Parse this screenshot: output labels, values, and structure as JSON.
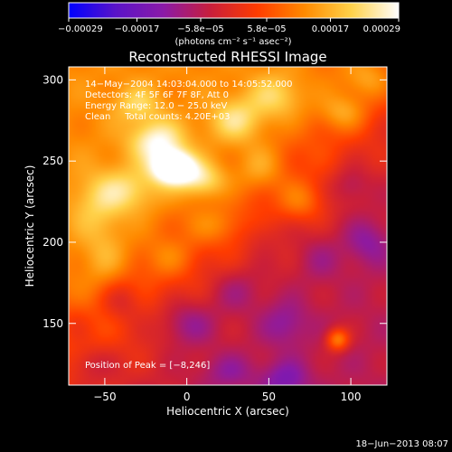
{
  "chart_data": {
    "type": "heatmap",
    "title": "Reconstructed RHESSI Image",
    "xlabel": "Heliocentric X (arcsec)",
    "ylabel": "Heliocentric Y (arcsec)",
    "xlim": [
      -72,
      122
    ],
    "ylim": [
      112,
      308
    ],
    "x_ticks": [
      {
        "value": -50,
        "label": "−50"
      },
      {
        "value": 0,
        "label": "0"
      },
      {
        "value": 50,
        "label": "50"
      },
      {
        "value": 100,
        "label": "100"
      }
    ],
    "y_ticks": [
      {
        "value": 150,
        "label": "150"
      },
      {
        "value": 200,
        "label": "200"
      },
      {
        "value": 250,
        "label": "250"
      },
      {
        "value": 300,
        "label": "300"
      }
    ],
    "colorbar": {
      "min": -0.00029,
      "max": 0.00029,
      "ticks": [
        {
          "value": -0.00029,
          "label": "−0.00029"
        },
        {
          "value": -0.00017,
          "label": "−0.00017"
        },
        {
          "value": -5.8e-05,
          "label": "−5.8e−05"
        },
        {
          "value": 5.8e-05,
          "label": "5.8e−05"
        },
        {
          "value": 0.00017,
          "label": "0.00017"
        },
        {
          "value": 0.00029,
          "label": "0.00029"
        }
      ],
      "unit_label": "(photons cm⁻² s⁻¹ asec⁻²)",
      "colors": [
        "#0000ff",
        "#5a14c8",
        "#8a1aa8",
        "#c81e3c",
        "#ff3c00",
        "#ff8a00",
        "#ffd24a",
        "#ffffff"
      ]
    },
    "annotations": [
      "14−May−2004 14:03:04.000 to 14:05:52.000",
      "Detectors: 4F 5F 6F 7F 8F, Att 0",
      "Energy Range: 12.0 − 25.0 keV",
      "Clean     Total counts: 4.20E+03"
    ],
    "peak_label": "Position of Peak = [−8,246]",
    "peak": {
      "x": -8,
      "y": 246
    },
    "blobs": [
      {
        "x": -8,
        "y": 246,
        "sx": 9,
        "sy": 7,
        "amp": 1.05
      },
      {
        "x": -18,
        "y": 262,
        "sx": 12,
        "sy": 9,
        "amp": 0.55
      },
      {
        "x": 10,
        "y": 238,
        "sx": 10,
        "sy": 8,
        "amp": 0.45
      },
      {
        "x": -35,
        "y": 232,
        "sx": 14,
        "sy": 10,
        "amp": 0.35
      },
      {
        "x": -55,
        "y": 222,
        "sx": 12,
        "sy": 14,
        "amp": 0.25
      },
      {
        "x": -50,
        "y": 190,
        "sx": 10,
        "sy": 14,
        "amp": 0.2
      },
      {
        "x": 30,
        "y": 275,
        "sx": 12,
        "sy": 10,
        "amp": 0.4
      },
      {
        "x": 55,
        "y": 290,
        "sx": 12,
        "sy": 10,
        "amp": 0.35
      },
      {
        "x": 45,
        "y": 245,
        "sx": 10,
        "sy": 10,
        "amp": 0.25
      },
      {
        "x": 70,
        "y": 225,
        "sx": 10,
        "sy": 9,
        "amp": 0.3
      },
      {
        "x": 95,
        "y": 280,
        "sx": 10,
        "sy": 8,
        "amp": 0.3
      },
      {
        "x": 110,
        "y": 300,
        "sx": 10,
        "sy": 8,
        "amp": 0.25
      },
      {
        "x": -30,
        "y": 285,
        "sx": 10,
        "sy": 8,
        "amp": 0.3
      },
      {
        "x": 92,
        "y": 140,
        "sx": 5,
        "sy": 5,
        "amp": 0.55
      },
      {
        "x": -10,
        "y": 190,
        "sx": 10,
        "sy": 8,
        "amp": 0.15
      },
      {
        "x": 20,
        "y": 210,
        "sx": 12,
        "sy": 8,
        "amp": 0.2
      },
      {
        "x": -40,
        "y": 165,
        "sx": 10,
        "sy": 10,
        "amp": -0.25
      },
      {
        "x": 0,
        "y": 150,
        "sx": 12,
        "sy": 10,
        "amp": -0.3
      },
      {
        "x": 30,
        "y": 170,
        "sx": 12,
        "sy": 10,
        "amp": -0.2
      },
      {
        "x": 60,
        "y": 150,
        "sx": 10,
        "sy": 10,
        "amp": -0.25
      },
      {
        "x": -60,
        "y": 125,
        "sx": 10,
        "sy": 8,
        "amp": -0.2
      },
      {
        "x": 80,
        "y": 190,
        "sx": 10,
        "sy": 10,
        "amp": -0.15
      },
      {
        "x": 110,
        "y": 200,
        "sx": 10,
        "sy": 10,
        "amp": -0.25
      },
      {
        "x": 25,
        "y": 120,
        "sx": 12,
        "sy": 8,
        "amp": -0.2
      },
      {
        "x": 60,
        "y": 115,
        "sx": 10,
        "sy": 8,
        "amp": -0.3
      },
      {
        "x": 100,
        "y": 235,
        "sx": 8,
        "sy": 8,
        "amp": -0.2
      },
      {
        "x": -70,
        "y": 150,
        "sx": 8,
        "sy": 10,
        "amp": -0.15
      },
      {
        "x": 45,
        "y": 205,
        "sx": 8,
        "sy": 8,
        "amp": -0.1
      }
    ]
  },
  "footer": {
    "timestamp": "18−Jun−2013 08:07"
  }
}
